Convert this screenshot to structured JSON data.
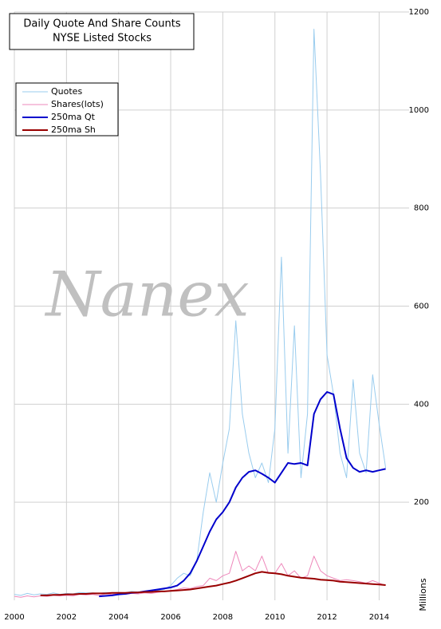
{
  "chart_data": {
    "type": "line",
    "title": "Daily Quote And Share Counts",
    "subtitle": "NYSE Listed Stocks",
    "watermark": "Nanex",
    "y_label": "Millions",
    "x": [
      2000,
      2000.25,
      2000.5,
      2000.75,
      2001,
      2001.25,
      2001.5,
      2001.75,
      2002,
      2002.25,
      2002.5,
      2002.75,
      2003,
      2003.25,
      2003.5,
      2003.75,
      2004,
      2004.25,
      2004.5,
      2004.75,
      2005,
      2005.25,
      2005.5,
      2005.75,
      2006,
      2006.25,
      2006.5,
      2006.75,
      2007,
      2007.25,
      2007.5,
      2007.75,
      2008,
      2008.25,
      2008.5,
      2008.75,
      2009,
      2009.25,
      2009.5,
      2009.75,
      2010,
      2010.25,
      2010.5,
      2010.75,
      2011,
      2011.25,
      2011.5,
      2011.75,
      2012,
      2012.25,
      2012.5,
      2012.75,
      2013,
      2013.25,
      2013.5,
      2013.75,
      2014,
      2014.25
    ],
    "series": [
      {
        "name": "Quotes",
        "color": "#99ccee",
        "width": 1,
        "values": [
          12,
          10,
          14,
          11,
          13,
          12,
          15,
          12,
          14,
          13,
          16,
          15,
          15,
          14,
          16,
          15,
          16,
          15,
          18,
          17,
          18,
          17,
          20,
          22,
          30,
          45,
          55,
          50,
          80,
          180,
          260,
          200,
          280,
          350,
          570,
          380,
          300,
          250,
          280,
          240,
          350,
          700,
          300,
          560,
          250,
          380,
          1165,
          870,
          500,
          420,
          300,
          250,
          450,
          300,
          260,
          460,
          360,
          270
        ]
      },
      {
        "name": "Shares(lots)",
        "color": "#ee88bb",
        "width": 1,
        "values": [
          8,
          6,
          9,
          7,
          9,
          8,
          10,
          9,
          10,
          9,
          12,
          11,
          12,
          10,
          13,
          12,
          13,
          12,
          14,
          13,
          15,
          14,
          16,
          18,
          20,
          22,
          25,
          24,
          28,
          30,
          45,
          40,
          50,
          55,
          100,
          60,
          70,
          60,
          90,
          55,
          55,
          75,
          50,
          60,
          45,
          50,
          90,
          60,
          50,
          45,
          40,
          42,
          40,
          38,
          35,
          40,
          35,
          30
        ]
      },
      {
        "name": "250ma Qt",
        "color": "#0000cc",
        "width": 2,
        "values": [
          null,
          null,
          null,
          null,
          null,
          null,
          null,
          null,
          null,
          null,
          null,
          null,
          null,
          8,
          9,
          10,
          12,
          13,
          15,
          16,
          18,
          20,
          22,
          24,
          26,
          30,
          40,
          55,
          80,
          110,
          140,
          165,
          180,
          200,
          230,
          250,
          262,
          265,
          258,
          250,
          240,
          260,
          280,
          278,
          280,
          275,
          380,
          410,
          425,
          420,
          350,
          290,
          270,
          262,
          265,
          262,
          265,
          268
        ]
      },
      {
        "name": "250ma Sh",
        "color": "#990000",
        "width": 2,
        "values": [
          null,
          null,
          null,
          null,
          10,
          10,
          11,
          11,
          12,
          12,
          13,
          13,
          14,
          14,
          14,
          15,
          15,
          15,
          16,
          16,
          17,
          17,
          18,
          18,
          19,
          20,
          21,
          22,
          24,
          26,
          28,
          30,
          33,
          36,
          40,
          45,
          50,
          55,
          58,
          56,
          55,
          53,
          50,
          48,
          46,
          45,
          44,
          42,
          41,
          40,
          38,
          37,
          36,
          35,
          34,
          33,
          32,
          31
        ]
      }
    ],
    "xlim": [
      2000,
      2015.15
    ],
    "xticks": [
      2000,
      2002,
      2004,
      2006,
      2008,
      2010,
      2012,
      2014
    ],
    "ylim": [
      0,
      1200
    ],
    "yticks": [
      200,
      400,
      600,
      800,
      1000,
      1200
    ],
    "grid": true,
    "legend": "upper left"
  }
}
